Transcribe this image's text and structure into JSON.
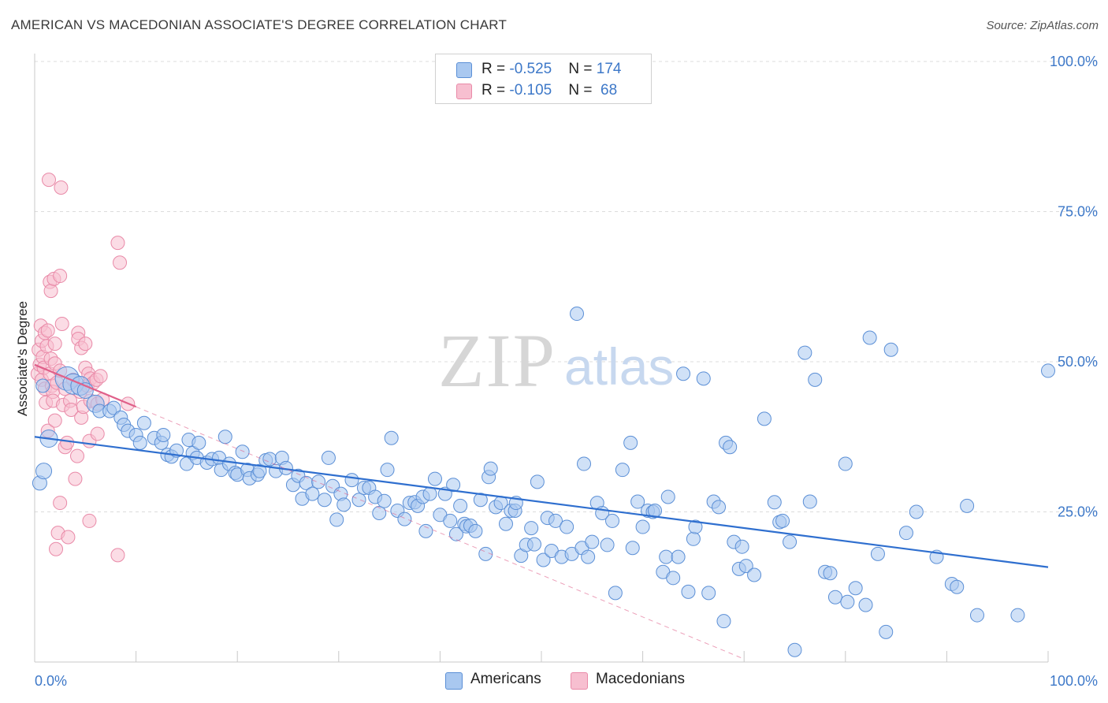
{
  "header": {
    "title": "AMERICAN VS MACEDONIAN ASSOCIATE'S DEGREE CORRELATION CHART",
    "source": "Source: ZipAtlas.com"
  },
  "legend": {
    "rows": [
      {
        "r_label": "R = ",
        "r_value": "-0.525",
        "n_label": "N = ",
        "n_value": "174"
      },
      {
        "r_label": "R = ",
        "r_value": "-0.105",
        "n_label": "N = ",
        "n_value": " 68"
      }
    ]
  },
  "bottom_legend": {
    "americans": "Americans",
    "macedonians": "Macedonians"
  },
  "colors": {
    "blue_fill": "#a9c8f0",
    "blue_stroke": "#5b8fd6",
    "blue_line": "#2f6fcf",
    "pink_fill": "#f7bfd0",
    "pink_stroke": "#e98aa8",
    "pink_line": "#e0608a",
    "tick_text": "#3d78c8"
  },
  "watermark": {
    "zip": "ZIP",
    "atlas": "atlas"
  },
  "chart_data": {
    "type": "scatter",
    "title": "AMERICAN VS MACEDONIAN ASSOCIATE'S DEGREE CORRELATION CHART",
    "xlabel": "",
    "ylabel": "Associate's Degree",
    "xlim": [
      0,
      100
    ],
    "ylim": [
      0,
      100
    ],
    "x_tick_labels": [
      "0.0%",
      "100.0%"
    ],
    "y_ticks": [
      25,
      50,
      75,
      100
    ],
    "y_tick_labels": [
      "25.0%",
      "50.0%",
      "75.0%",
      "100.0%"
    ],
    "grid": true,
    "legend_position": "top-center",
    "series": [
      {
        "name": "Americans",
        "r": -0.525,
        "n": 174,
        "trend": {
          "x": [
            0,
            100
          ],
          "y": [
            37.5,
            15.8
          ]
        },
        "points": [
          [
            0.8,
            46
          ],
          [
            0.5,
            29.8
          ],
          [
            0.9,
            31.8
          ],
          [
            1.4,
            37.2
          ],
          [
            3.2,
            47.2
          ],
          [
            3.8,
            46.3
          ],
          [
            4.5,
            46
          ],
          [
            5,
            45.2
          ],
          [
            6,
            43
          ],
          [
            6.4,
            41.8
          ],
          [
            7.4,
            41.8
          ],
          [
            7.8,
            42.3
          ],
          [
            8.5,
            40.7
          ],
          [
            8.8,
            39.5
          ],
          [
            9.2,
            38.5
          ],
          [
            10,
            37.8
          ],
          [
            10.4,
            36.5
          ],
          [
            10.8,
            39.8
          ],
          [
            11.8,
            37.3
          ],
          [
            12.5,
            36.5
          ],
          [
            12.7,
            37.8
          ],
          [
            13.1,
            34.5
          ],
          [
            13.5,
            34.2
          ],
          [
            14,
            35.2
          ],
          [
            15,
            33
          ],
          [
            15.2,
            37
          ],
          [
            15.6,
            34.8
          ],
          [
            16,
            34
          ],
          [
            16.2,
            36.5
          ],
          [
            17,
            33.2
          ],
          [
            17.5,
            33.8
          ],
          [
            18.2,
            34
          ],
          [
            18.4,
            32
          ],
          [
            18.8,
            37.5
          ],
          [
            19.2,
            33
          ],
          [
            19.8,
            31.5
          ],
          [
            20,
            31.2
          ],
          [
            20.5,
            35
          ],
          [
            21,
            32
          ],
          [
            21.2,
            30.6
          ],
          [
            22,
            31.2
          ],
          [
            22.2,
            31.8
          ],
          [
            22.8,
            33.6
          ],
          [
            23.2,
            33.8
          ],
          [
            23.8,
            31.8
          ],
          [
            24.4,
            34
          ],
          [
            24.8,
            32.3
          ],
          [
            25.5,
            29.5
          ],
          [
            26,
            31
          ],
          [
            26.4,
            27.2
          ],
          [
            26.8,
            29.8
          ],
          [
            27.4,
            28
          ],
          [
            28,
            30
          ],
          [
            28.6,
            27
          ],
          [
            29,
            34
          ],
          [
            29.4,
            29.3
          ],
          [
            29.8,
            23.7
          ],
          [
            30.2,
            28
          ],
          [
            30.5,
            26.2
          ],
          [
            31.3,
            30.3
          ],
          [
            32,
            27
          ],
          [
            32.5,
            29
          ],
          [
            33,
            29
          ],
          [
            33.6,
            27.5
          ],
          [
            34,
            24.8
          ],
          [
            34.5,
            26.8
          ],
          [
            34.8,
            32
          ],
          [
            35.2,
            37.3
          ],
          [
            35.8,
            25.2
          ],
          [
            36.5,
            23.8
          ],
          [
            37,
            26.5
          ],
          [
            37.5,
            26.6
          ],
          [
            37.8,
            26
          ],
          [
            38.3,
            27.5
          ],
          [
            38.6,
            21.8
          ],
          [
            39,
            28
          ],
          [
            39.5,
            30.5
          ],
          [
            40,
            24.5
          ],
          [
            40.5,
            28
          ],
          [
            41,
            23.5
          ],
          [
            41.3,
            29.5
          ],
          [
            41.6,
            21.3
          ],
          [
            42,
            26
          ],
          [
            42.4,
            23
          ],
          [
            42.6,
            22.6
          ],
          [
            43,
            22.7
          ],
          [
            43.5,
            21.8
          ],
          [
            44,
            27
          ],
          [
            44.5,
            18
          ],
          [
            44.8,
            30.8
          ],
          [
            45,
            32.2
          ],
          [
            45.5,
            25.8
          ],
          [
            46,
            26.5
          ],
          [
            46.5,
            23
          ],
          [
            47,
            25.2
          ],
          [
            47.4,
            25.2
          ],
          [
            47.5,
            26.5
          ],
          [
            48,
            17.7
          ],
          [
            48.5,
            19.5
          ],
          [
            49,
            22.3
          ],
          [
            49.3,
            19.6
          ],
          [
            49.6,
            30
          ],
          [
            50.2,
            17
          ],
          [
            50.6,
            24
          ],
          [
            51,
            18.5
          ],
          [
            51.4,
            23.5
          ],
          [
            52,
            17.5
          ],
          [
            52.5,
            22.5
          ],
          [
            53,
            18
          ],
          [
            53.5,
            58
          ],
          [
            54,
            19
          ],
          [
            54.2,
            33
          ],
          [
            54.6,
            17.5
          ],
          [
            55,
            20
          ],
          [
            55.5,
            26.5
          ],
          [
            56,
            24.8
          ],
          [
            56.5,
            19.5
          ],
          [
            57,
            23.5
          ],
          [
            57.3,
            11.5
          ],
          [
            58,
            32
          ],
          [
            58.8,
            36.5
          ],
          [
            59,
            19
          ],
          [
            59.5,
            26.7
          ],
          [
            60,
            22.5
          ],
          [
            60.5,
            25.2
          ],
          [
            61,
            25
          ],
          [
            61.2,
            25.2
          ],
          [
            62,
            15
          ],
          [
            62.3,
            17.5
          ],
          [
            62.5,
            27.5
          ],
          [
            63,
            14
          ],
          [
            63.5,
            17.5
          ],
          [
            64,
            48
          ],
          [
            64.5,
            11.7
          ],
          [
            65,
            20.5
          ],
          [
            65.2,
            22.5
          ],
          [
            66,
            47.2
          ],
          [
            66.5,
            11.5
          ],
          [
            67,
            26.7
          ],
          [
            67.5,
            25.8
          ],
          [
            68,
            6.8
          ],
          [
            68.2,
            36.5
          ],
          [
            68.6,
            35.8
          ],
          [
            69,
            20
          ],
          [
            69.5,
            15.5
          ],
          [
            69.8,
            19.2
          ],
          [
            70.2,
            16
          ],
          [
            71,
            14.5
          ],
          [
            72,
            40.5
          ],
          [
            73,
            26.6
          ],
          [
            73.5,
            23.3
          ],
          [
            73.8,
            23.5
          ],
          [
            74.5,
            20
          ],
          [
            75,
            2
          ],
          [
            76,
            51.5
          ],
          [
            76.5,
            26.7
          ],
          [
            77,
            47
          ],
          [
            78,
            15
          ],
          [
            78.5,
            14.8
          ],
          [
            79,
            10.8
          ],
          [
            80,
            33
          ],
          [
            80.2,
            10
          ],
          [
            81,
            12.3
          ],
          [
            82,
            9.5
          ],
          [
            82.4,
            54
          ],
          [
            83.2,
            18
          ],
          [
            84,
            5
          ],
          [
            84.5,
            52
          ],
          [
            86,
            21.5
          ],
          [
            87,
            25
          ],
          [
            89,
            17.5
          ],
          [
            90.5,
            13
          ],
          [
            91,
            12.5
          ],
          [
            92,
            26
          ],
          [
            93,
            7.8
          ],
          [
            97,
            7.8
          ],
          [
            100,
            48.5
          ]
        ]
      },
      {
        "name": "Macedonians",
        "r": -0.105,
        "n": 68,
        "trend": {
          "x": [
            0,
            10
          ],
          "y": [
            49.5,
            42.5
          ]
        },
        "points": [
          [
            0.3,
            48
          ],
          [
            0.4,
            52
          ],
          [
            0.5,
            49.5
          ],
          [
            0.6,
            56
          ],
          [
            0.7,
            53.5
          ],
          [
            0.7,
            47
          ],
          [
            0.8,
            50.8
          ],
          [
            0.9,
            49
          ],
          [
            1,
            45.5
          ],
          [
            1,
            54.8
          ],
          [
            1.1,
            43.2
          ],
          [
            1.2,
            52.6
          ],
          [
            1.3,
            38.5
          ],
          [
            1.3,
            55.2
          ],
          [
            1.4,
            80.3
          ],
          [
            1.5,
            48
          ],
          [
            1.5,
            63.3
          ],
          [
            1.6,
            50.5
          ],
          [
            1.6,
            61.8
          ],
          [
            1.7,
            46
          ],
          [
            1.8,
            45
          ],
          [
            1.8,
            43.5
          ],
          [
            1.9,
            63.8
          ],
          [
            2,
            49.7
          ],
          [
            2,
            53
          ],
          [
            2,
            40.2
          ],
          [
            2.1,
            18.8
          ],
          [
            2.2,
            46.5
          ],
          [
            2.3,
            21.5
          ],
          [
            2.5,
            26.5
          ],
          [
            2.5,
            64.3
          ],
          [
            2.5,
            48.5
          ],
          [
            2.6,
            79
          ],
          [
            2.7,
            56.3
          ],
          [
            2.8,
            42.8
          ],
          [
            3,
            45.5
          ],
          [
            3,
            35.8
          ],
          [
            3.2,
            36.5
          ],
          [
            3.3,
            20.8
          ],
          [
            3.5,
            43.5
          ],
          [
            3.6,
            42
          ],
          [
            3.8,
            47
          ],
          [
            4,
            30.5
          ],
          [
            4.2,
            34.3
          ],
          [
            4.3,
            54.8
          ],
          [
            4.3,
            53.8
          ],
          [
            4.5,
            45
          ],
          [
            4.6,
            40.7
          ],
          [
            4.6,
            52.3
          ],
          [
            4.8,
            42.5
          ],
          [
            5,
            53
          ],
          [
            5,
            49
          ],
          [
            5.2,
            46
          ],
          [
            5.3,
            48
          ],
          [
            5.4,
            36.8
          ],
          [
            5.4,
            23.5
          ],
          [
            5.5,
            47.2
          ],
          [
            5.5,
            43.5
          ],
          [
            5.8,
            46.5
          ],
          [
            6.1,
            47
          ],
          [
            6.2,
            38
          ],
          [
            6.2,
            43
          ],
          [
            6.5,
            47.6
          ],
          [
            6.7,
            43.7
          ],
          [
            8.2,
            17.8
          ],
          [
            8.2,
            69.8
          ],
          [
            8.4,
            66.5
          ],
          [
            9.2,
            43
          ]
        ]
      }
    ]
  }
}
